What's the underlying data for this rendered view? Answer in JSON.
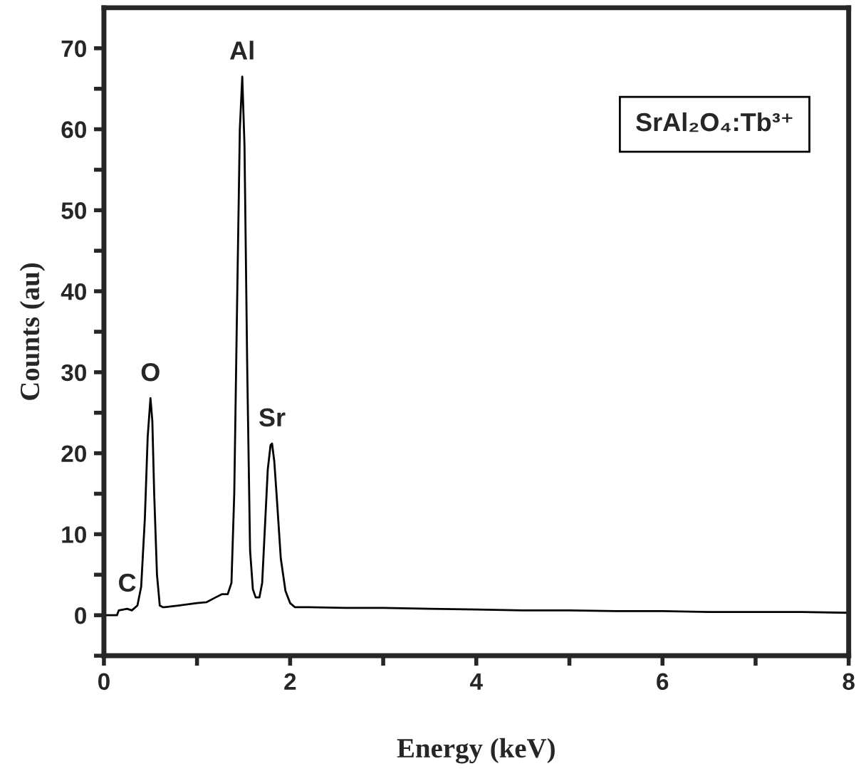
{
  "chart_data": {
    "type": "line",
    "xlabel": "Energy (keV)",
    "ylabel": "Counts (au)",
    "xlim": [
      0,
      8
    ],
    "ylim": [
      -5,
      75
    ],
    "xticks": [
      0,
      {
        "value": 1,
        "label": null
      },
      2,
      {
        "value": 3,
        "label": null
      },
      4,
      {
        "value": 5,
        "label": null
      },
      6,
      {
        "value": 7,
        "label": null
      },
      8
    ],
    "yticks": [
      {
        "value": -5,
        "label": null
      },
      0,
      {
        "value": 5,
        "label": null
      },
      10,
      {
        "value": 15,
        "label": null
      },
      20,
      {
        "value": 25,
        "label": null
      },
      30,
      {
        "value": 35,
        "label": null
      },
      40,
      {
        "value": 45,
        "label": null
      },
      50,
      {
        "value": 55,
        "label": null
      },
      60,
      {
        "value": 65,
        "label": null
      },
      70
    ],
    "grid": false,
    "marker": "none",
    "line_style": "solid",
    "series": [
      {
        "color": "#000000",
        "x": [
          0,
          0.14,
          0.16,
          0.25,
          0.3,
          0.36,
          0.4,
          0.44,
          0.47,
          0.5,
          0.52,
          0.54,
          0.57,
          0.6,
          0.63,
          0.65,
          0.8,
          1.0,
          1.1,
          1.2,
          1.27,
          1.33,
          1.37,
          1.4,
          1.43,
          1.46,
          1.486,
          1.51,
          1.54,
          1.57,
          1.6,
          1.63,
          1.67,
          1.7,
          1.73,
          1.76,
          1.79,
          1.806,
          1.83,
          1.86,
          1.9,
          1.95,
          2.0,
          2.05,
          2.2,
          2.6,
          3.0,
          3.5,
          4.0,
          4.5,
          5.0,
          5.5,
          6.0,
          6.5,
          7.0,
          7.5,
          8.0
        ],
        "values": [
          0,
          0,
          0.6,
          0.8,
          0.6,
          1.2,
          3.5,
          12,
          22,
          26.8,
          24,
          15,
          5,
          1.2,
          1.0,
          1.0,
          1.2,
          1.5,
          1.6,
          2.2,
          2.6,
          2.6,
          4,
          15,
          38,
          60,
          66.5,
          58,
          30,
          8,
          3.2,
          2.2,
          2.2,
          4,
          11,
          18,
          21,
          21.2,
          19,
          14,
          7,
          3,
          1.5,
          1.0,
          1.0,
          0.9,
          0.9,
          0.8,
          0.7,
          0.6,
          0.6,
          0.5,
          0.5,
          0.4,
          0.4,
          0.4,
          0.3
        ]
      }
    ],
    "annotations": [
      {
        "text": "C",
        "x": 0.25,
        "y": 0.8
      },
      {
        "text": "O",
        "x": 0.5,
        "y": 26.8
      },
      {
        "text": "Al",
        "x": 1.486,
        "y": 66.5
      },
      {
        "text": "Sr",
        "x": 1.806,
        "y": 21.2
      },
      "SrAl₂O₄:Tb³⁺"
    ]
  }
}
